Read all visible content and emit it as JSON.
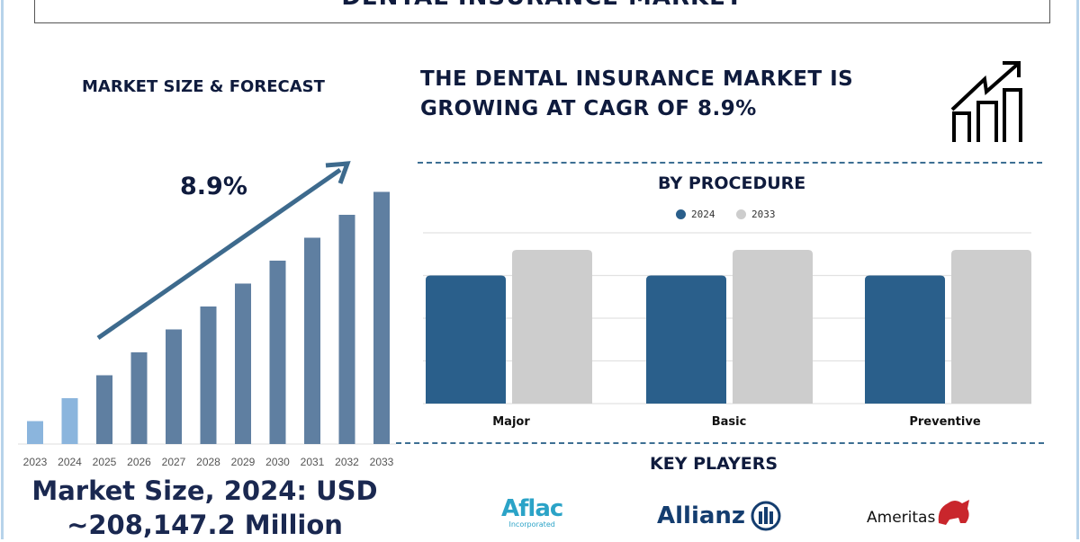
{
  "title": "DENTAL INSURANCE MARKET",
  "left_panel": {
    "heading": "MARKET SIZE & FORECAST",
    "cagr_label": "8.9%",
    "market_size_line1": "Market Size, 2024: USD",
    "market_size_line2": "~208,147.2 Million"
  },
  "headline": {
    "line1": "THE DENTAL INSURANCE MARKET IS",
    "line2": "GROWING AT CAGR OF 8.9%",
    "icon": "growth-chart-icon"
  },
  "key_players": {
    "heading": "KEY PLAYERS",
    "companies": [
      {
        "name": "Aflac",
        "sub": "Incorporated"
      },
      {
        "name": "Allianz"
      },
      {
        "name": "Ameritas"
      }
    ]
  },
  "chart_data": [
    {
      "type": "bar",
      "title": "",
      "categories": [
        "2023",
        "2024",
        "2025",
        "2026",
        "2027",
        "2028",
        "2029",
        "2030",
        "2031",
        "2032",
        "2033"
      ],
      "values": [
        1,
        2,
        3,
        4,
        5,
        6,
        7,
        8,
        9,
        10,
        11
      ],
      "value_note": "relative heights, no axis printed",
      "ylim": [
        0,
        11.5
      ],
      "grid": false,
      "annotation": "8.9%",
      "colors": {
        "historic": "#8bb5dd",
        "forecast": "#5f7fa1",
        "arrow": "#3d6a8d"
      }
    },
    {
      "type": "bar",
      "title": "BY PROCEDURE",
      "categories": [
        "Major",
        "Basic",
        "Preventive"
      ],
      "series": [
        {
          "name": "2024",
          "values": [
            3.0,
            3.0,
            3.0
          ],
          "color": "#2a5f8b"
        },
        {
          "name": "2033",
          "values": [
            3.6,
            3.6,
            3.6
          ],
          "color": "#cdcdcd"
        }
      ],
      "ylim": [
        0,
        4
      ],
      "grid": true,
      "legend": "top-center"
    }
  ]
}
